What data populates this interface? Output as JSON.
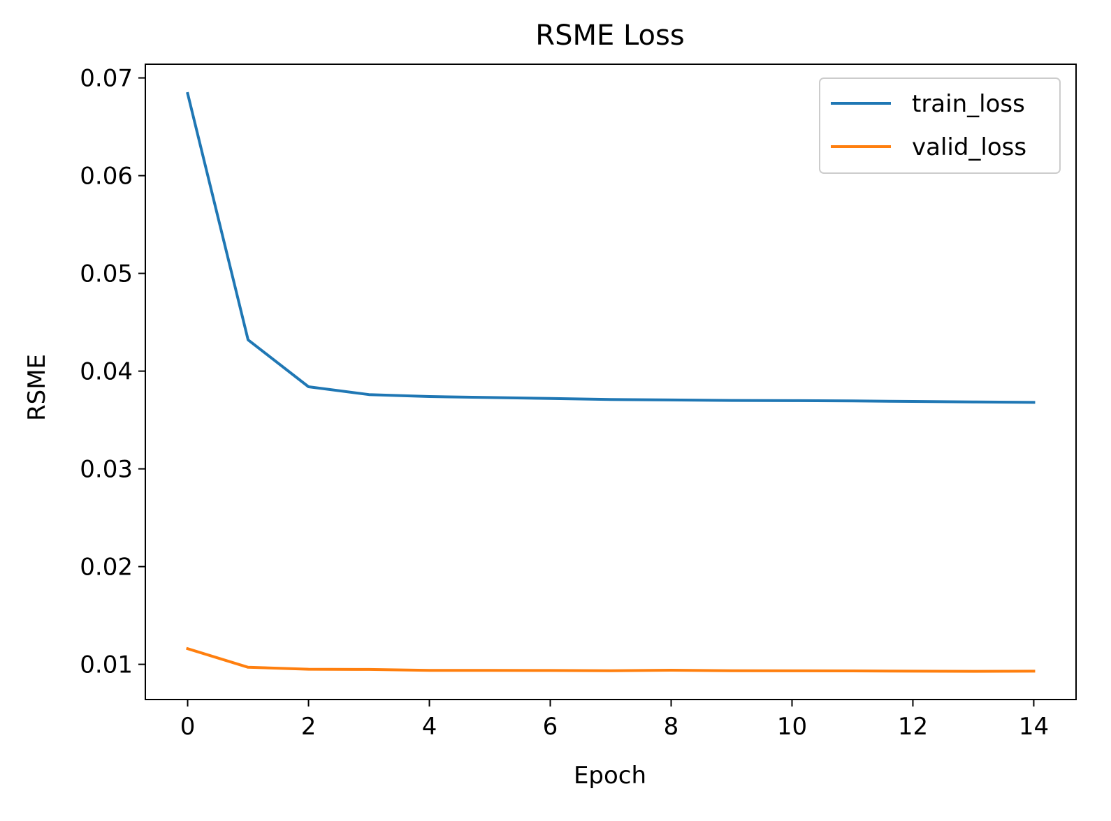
{
  "chart_data": {
    "type": "line",
    "title": "RSME Loss",
    "xlabel": "Epoch",
    "ylabel": "RSME",
    "xlim": [
      -0.7,
      14.7
    ],
    "ylim": [
      0.0064,
      0.0714
    ],
    "xticks": [
      0,
      2,
      4,
      6,
      8,
      10,
      12,
      14
    ],
    "yticks": [
      0.01,
      0.02,
      0.03,
      0.04,
      0.05,
      0.06,
      0.07
    ],
    "xtick_labels": [
      "0",
      "2",
      "4",
      "6",
      "8",
      "10",
      "12",
      "14"
    ],
    "ytick_labels": [
      "0.01",
      "0.02",
      "0.03",
      "0.04",
      "0.05",
      "0.06",
      "0.07"
    ],
    "grid": false,
    "legend_position": "top-right",
    "x": [
      0,
      1,
      2,
      3,
      4,
      5,
      6,
      7,
      8,
      9,
      10,
      11,
      12,
      13,
      14
    ],
    "series": [
      {
        "name": "train_loss",
        "color": "#1f77b4",
        "values": [
          0.0684,
          0.0432,
          0.0384,
          0.0376,
          0.0374,
          0.0373,
          0.0372,
          0.0371,
          0.03705,
          0.037,
          0.03698,
          0.03695,
          0.0369,
          0.03685,
          0.0368
        ]
      },
      {
        "name": "valid_loss",
        "color": "#ff7f0e",
        "values": [
          0.0116,
          0.0097,
          0.0095,
          0.00948,
          0.00938,
          0.00938,
          0.00937,
          0.00935,
          0.0094,
          0.00935,
          0.00934,
          0.00933,
          0.0093,
          0.00928,
          0.0093
        ]
      }
    ]
  }
}
